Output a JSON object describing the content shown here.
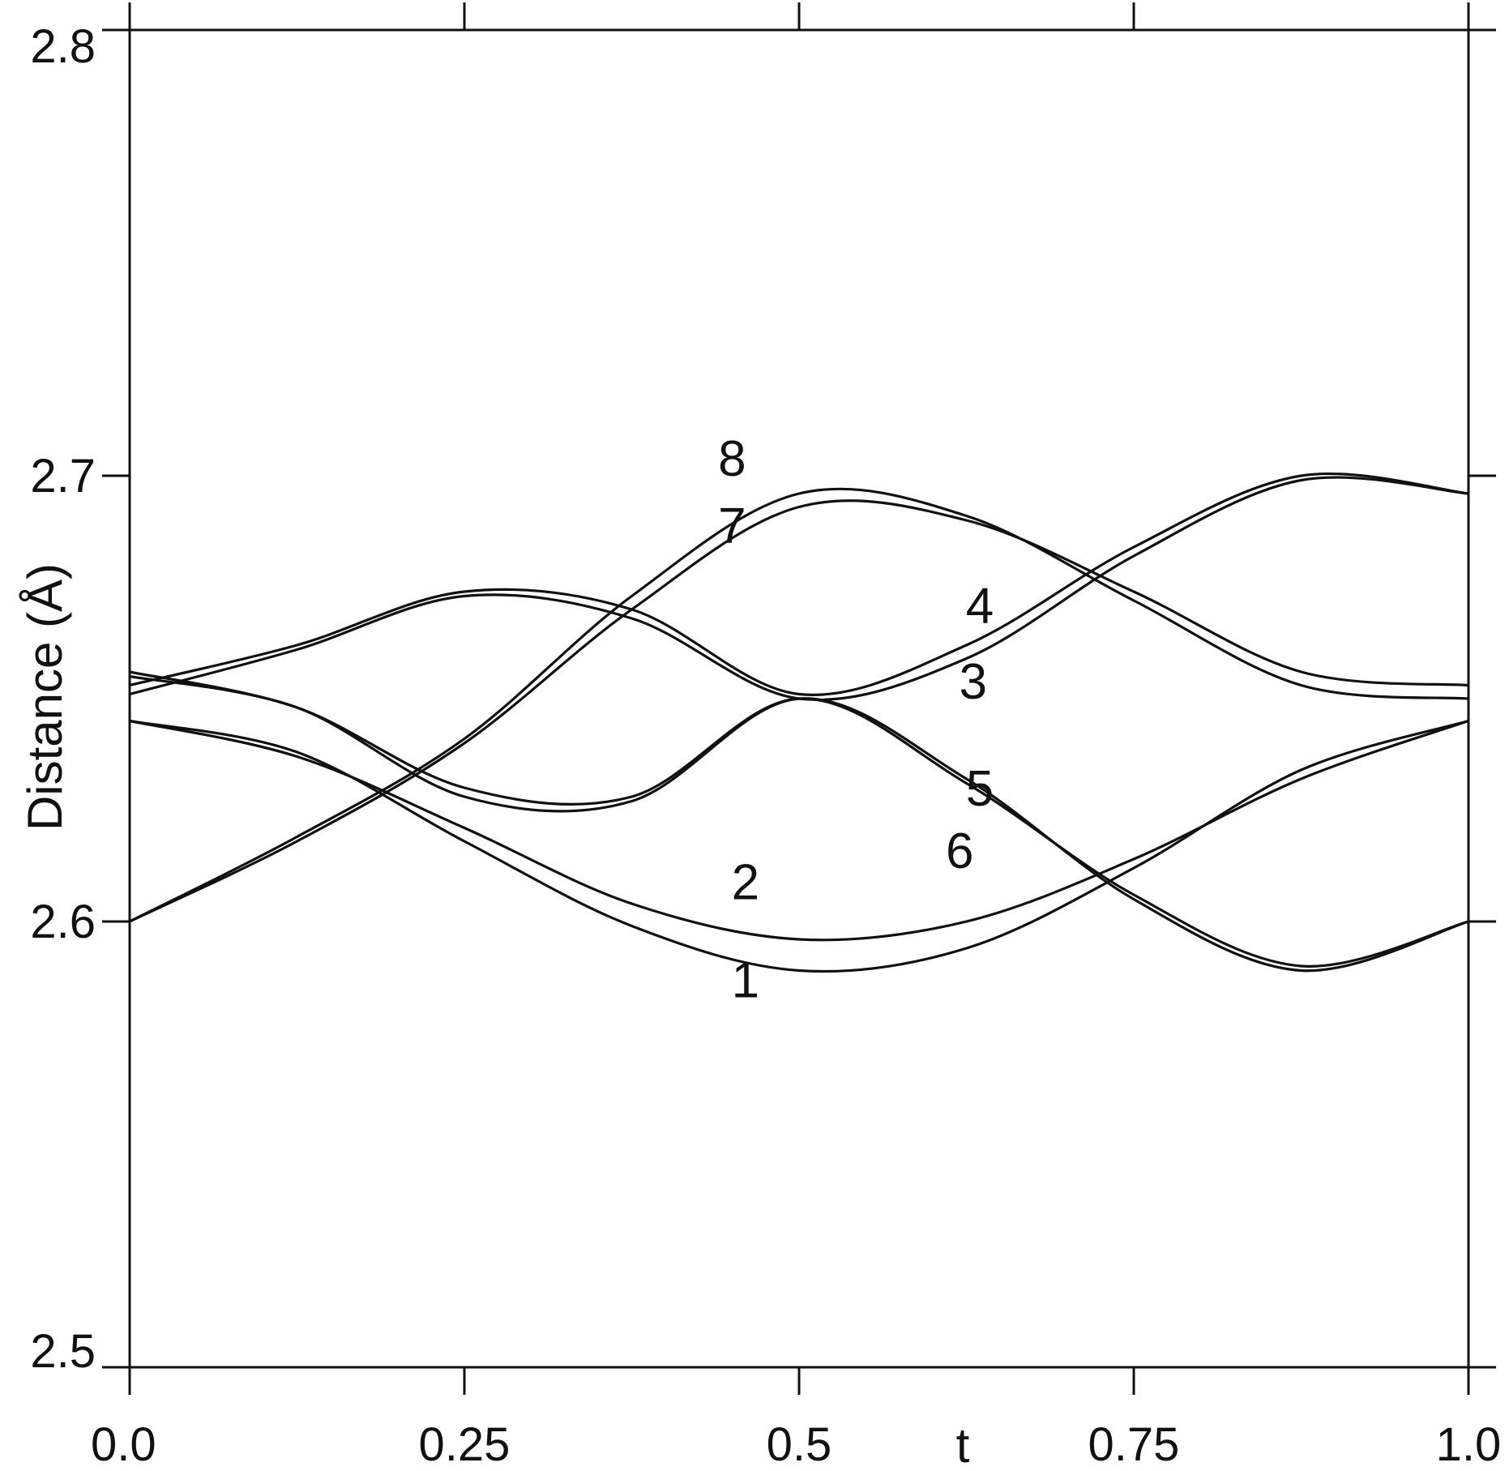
{
  "chart_data": {
    "type": "line",
    "title": "",
    "xlabel": "t",
    "ylabel": "Distance  (Å)",
    "xlim": [
      0,
      1
    ],
    "ylim": [
      2.5,
      2.8
    ],
    "xticks": [
      0,
      0.25,
      0.5,
      0.75,
      1
    ],
    "xtick_labels": [
      "0.0",
      "0.25",
      "0.5",
      "0.75",
      "1.0"
    ],
    "yticks": [
      2.5,
      2.6,
      2.7,
      2.8
    ],
    "ytick_labels": [
      "2.5",
      "2.6",
      "2.7",
      "2.8"
    ],
    "grid": false,
    "legend": "none",
    "line_color": "#111111",
    "x": [
      0,
      0.125,
      0.25,
      0.375,
      0.5,
      0.625,
      0.75,
      0.875,
      1
    ],
    "series": [
      {
        "label": "1",
        "label_at": [
          0.46,
          2.583
        ],
        "values": [
          2.645,
          2.638,
          2.618,
          2.599,
          2.589,
          2.594,
          2.612,
          2.634,
          2.645
        ]
      },
      {
        "label": "2",
        "label_at": [
          0.46,
          2.605
        ],
        "values": [
          2.645,
          2.637,
          2.621,
          2.604,
          2.596,
          2.6,
          2.614,
          2.632,
          2.645
        ]
      },
      {
        "label": "3",
        "label_at": [
          0.63,
          2.65
        ],
        "values": [
          2.651,
          2.661,
          2.673,
          2.668,
          2.65,
          2.659,
          2.682,
          2.699,
          2.696
        ]
      },
      {
        "label": "4",
        "label_at": [
          0.635,
          2.667
        ],
        "values": [
          2.653,
          2.662,
          2.674,
          2.67,
          2.651,
          2.662,
          2.684,
          2.7,
          2.696
        ]
      },
      {
        "label": "5",
        "label_at": [
          0.635,
          2.626
        ],
        "values": [
          2.656,
          2.648,
          2.63,
          2.628,
          2.65,
          2.631,
          2.606,
          2.59,
          2.6
        ]
      },
      {
        "label": "6",
        "label_at": [
          0.62,
          2.612
        ],
        "values": [
          2.655,
          2.648,
          2.628,
          2.627,
          2.65,
          2.632,
          2.605,
          2.589,
          2.6
        ]
      },
      {
        "label": "7",
        "label_at": [
          0.45,
          2.685
        ],
        "values": [
          2.6,
          2.618,
          2.64,
          2.67,
          2.693,
          2.69,
          2.674,
          2.656,
          2.653
        ]
      },
      {
        "label": "8",
        "label_at": [
          0.45,
          2.7
        ],
        "values": [
          2.6,
          2.619,
          2.641,
          2.673,
          2.696,
          2.691,
          2.672,
          2.653,
          2.65
        ]
      }
    ]
  }
}
